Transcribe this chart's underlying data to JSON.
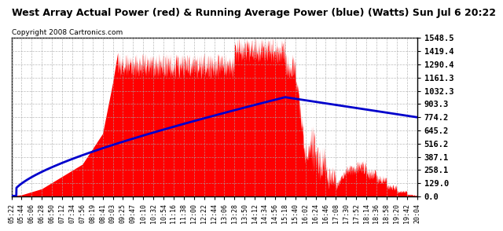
{
  "title": "West Array Actual Power (red) & Running Average Power (blue) (Watts) Sun Jul 6 20:22",
  "copyright": "Copyright 2008 Cartronics.com",
  "bg_color": "#ffffff",
  "plot_bg_color": "#ffffff",
  "grid_color": "#aaaaaa",
  "actual_color": "#ff0000",
  "avg_color": "#0000cc",
  "title_color": "#000000",
  "ymin": 0.0,
  "ymax": 1548.5,
  "yticks": [
    0.0,
    129.0,
    258.1,
    387.1,
    516.2,
    645.2,
    774.2,
    903.3,
    1032.3,
    1161.3,
    1290.4,
    1419.4,
    1548.5
  ],
  "xtick_labels": [
    "05:22",
    "05:44",
    "06:06",
    "06:28",
    "06:50",
    "07:12",
    "07:34",
    "07:56",
    "08:19",
    "08:41",
    "09:03",
    "09:25",
    "09:47",
    "10:10",
    "10:32",
    "10:54",
    "11:16",
    "11:38",
    "12:00",
    "12:22",
    "12:44",
    "13:06",
    "13:28",
    "13:50",
    "14:12",
    "14:34",
    "14:56",
    "15:18",
    "15:40",
    "16:02",
    "16:24",
    "16:46",
    "17:08",
    "17:30",
    "17:52",
    "18:14",
    "18:36",
    "18:58",
    "19:20",
    "19:42",
    "20:04"
  ]
}
